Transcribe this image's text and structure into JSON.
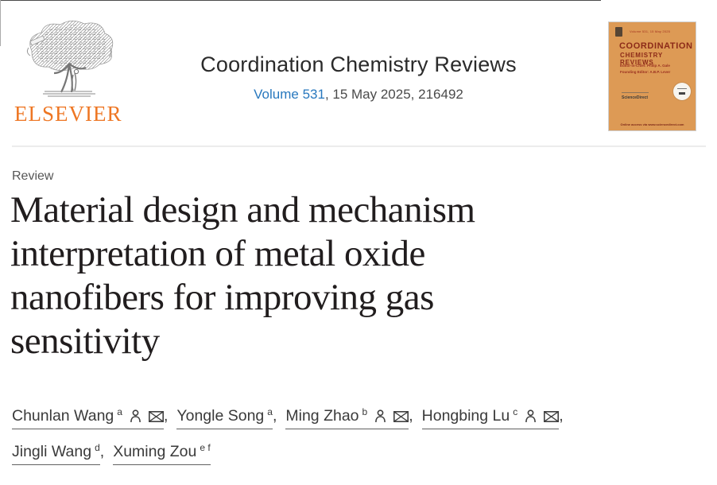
{
  "header": {
    "publisher": {
      "name": "ELSEVIER",
      "logo": "elsevier-tree-logo"
    },
    "journal_title": "Coordination Chemistry Reviews",
    "volume_link": "Volume 531",
    "issue_info": ", 15 May 2025, 216492"
  },
  "cover": {
    "title_line1": "COORDINATION",
    "title_line2": "CHEMISTRY REVIEWS",
    "meta_line": "Volume 531, 15 May 2025",
    "editor_line": "Editor-in-Chief: Philip A. Gale",
    "founding_line": "Founding Editor: A.B.P. Lever",
    "brand": "ScienceDirect",
    "footer_line": "Online access via www.sciencedirect.com"
  },
  "article": {
    "type_label": "Review",
    "title": "Material design and mechanism interpretation of metal oxide nanofibers for improving gas sensitivity",
    "title_lines": [
      "Material design and mechanism",
      "interpretation of metal oxide",
      "nanofibers for improving gas",
      "sensitivity"
    ]
  },
  "authors": {
    "separator": ",",
    "groups": [
      {
        "name": "Chunlan Wang",
        "sup": "a",
        "person": true,
        "envelope": true,
        "row": 1
      },
      {
        "name": "Yongle Song",
        "sup": "a",
        "person": false,
        "envelope": false,
        "row": 1
      },
      {
        "name": "Ming Zhao",
        "sup": "b",
        "person": true,
        "envelope": true,
        "row": 1
      },
      {
        "name": "Hongbing Lu",
        "sup": "c",
        "person": true,
        "envelope": true,
        "row": 1
      },
      {
        "name": "Jingli Wang",
        "sup": "d",
        "person": false,
        "envelope": false,
        "row": 2
      },
      {
        "name": "Xuming Zou",
        "sup": "e f",
        "person": false,
        "envelope": false,
        "row": 2
      }
    ]
  },
  "colors": {
    "elsevier_orange": "#ee7623",
    "link_blue": "#2878be",
    "cover_title_red": "#8c2a18",
    "divider_gray": "#ececec"
  }
}
